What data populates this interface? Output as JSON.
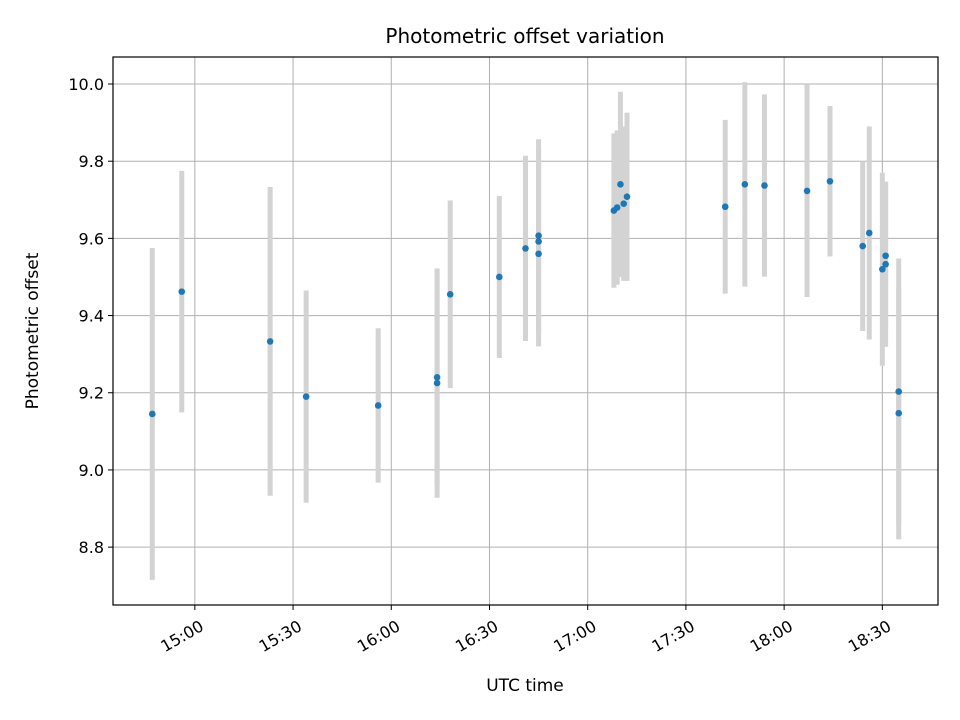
{
  "chart_data": {
    "type": "scatter",
    "title": "Photometric offset variation",
    "xlabel": "UTC time",
    "ylabel": "Photometric offset",
    "x_tick_labels": [
      "15:00",
      "15:30",
      "16:00",
      "16:30",
      "17:00",
      "17:30",
      "18:00",
      "18:30"
    ],
    "x_tick_minutes": [
      900,
      930,
      960,
      990,
      1020,
      1050,
      1080,
      1110
    ],
    "xlim_minutes": [
      875,
      1127
    ],
    "y_ticks": [
      "8.8",
      "9.0",
      "9.2",
      "9.4",
      "9.6",
      "9.8",
      "10.0"
    ],
    "ylim": [
      8.65,
      10.07
    ],
    "grid": true,
    "colors": {
      "point": "#1f77b4",
      "errorbar": "#d3d3d3",
      "grid": "#b0b0b0"
    },
    "points": [
      {
        "t": "14:47",
        "y": 9.145,
        "err": 0.43
      },
      {
        "t": "14:56",
        "y": 9.462,
        "err": 0.313
      },
      {
        "t": "15:23",
        "y": 9.333,
        "err": 0.4
      },
      {
        "t": "15:34",
        "y": 9.19,
        "err": 0.275
      },
      {
        "t": "15:56",
        "y": 9.167,
        "err": 0.2
      },
      {
        "t": "16:14",
        "y": 9.24,
        "err": 0.28
      },
      {
        "t": "16:14",
        "y": 9.225,
        "err": 0.297
      },
      {
        "t": "16:18",
        "y": 9.455,
        "err": 0.243
      },
      {
        "t": "16:33",
        "y": 9.5,
        "err": 0.21
      },
      {
        "t": "16:41",
        "y": 9.574,
        "err": 0.24
      },
      {
        "t": "16:45",
        "y": 9.607,
        "err": 0.25
      },
      {
        "t": "16:45",
        "y": 9.592,
        "err": 0.24
      },
      {
        "t": "16:45",
        "y": 9.56,
        "err": 0.24
      },
      {
        "t": "17:08",
        "y": 9.672,
        "err": 0.2
      },
      {
        "t": "17:09",
        "y": 9.68,
        "err": 0.2
      },
      {
        "t": "17:10",
        "y": 9.74,
        "err": 0.24
      },
      {
        "t": "17:11",
        "y": 9.69,
        "err": 0.2
      },
      {
        "t": "17:12",
        "y": 9.708,
        "err": 0.218
      },
      {
        "t": "17:42",
        "y": 9.682,
        "err": 0.225
      },
      {
        "t": "17:48",
        "y": 9.74,
        "err": 0.265
      },
      {
        "t": "17:54",
        "y": 9.737,
        "err": 0.236
      },
      {
        "t": "18:07",
        "y": 9.723,
        "err": 0.275
      },
      {
        "t": "18:14",
        "y": 9.748,
        "err": 0.195
      },
      {
        "t": "18:24",
        "y": 9.58,
        "err": 0.22
      },
      {
        "t": "18:26",
        "y": 9.614,
        "err": 0.276
      },
      {
        "t": "18:30",
        "y": 9.52,
        "err": 0.25
      },
      {
        "t": "18:31",
        "y": 9.555,
        "err": 0.19
      },
      {
        "t": "18:31",
        "y": 9.533,
        "err": 0.214
      },
      {
        "t": "18:35",
        "y": 9.203,
        "err": 0.345
      },
      {
        "t": "18:35",
        "y": 9.147,
        "err": 0.327
      }
    ]
  }
}
